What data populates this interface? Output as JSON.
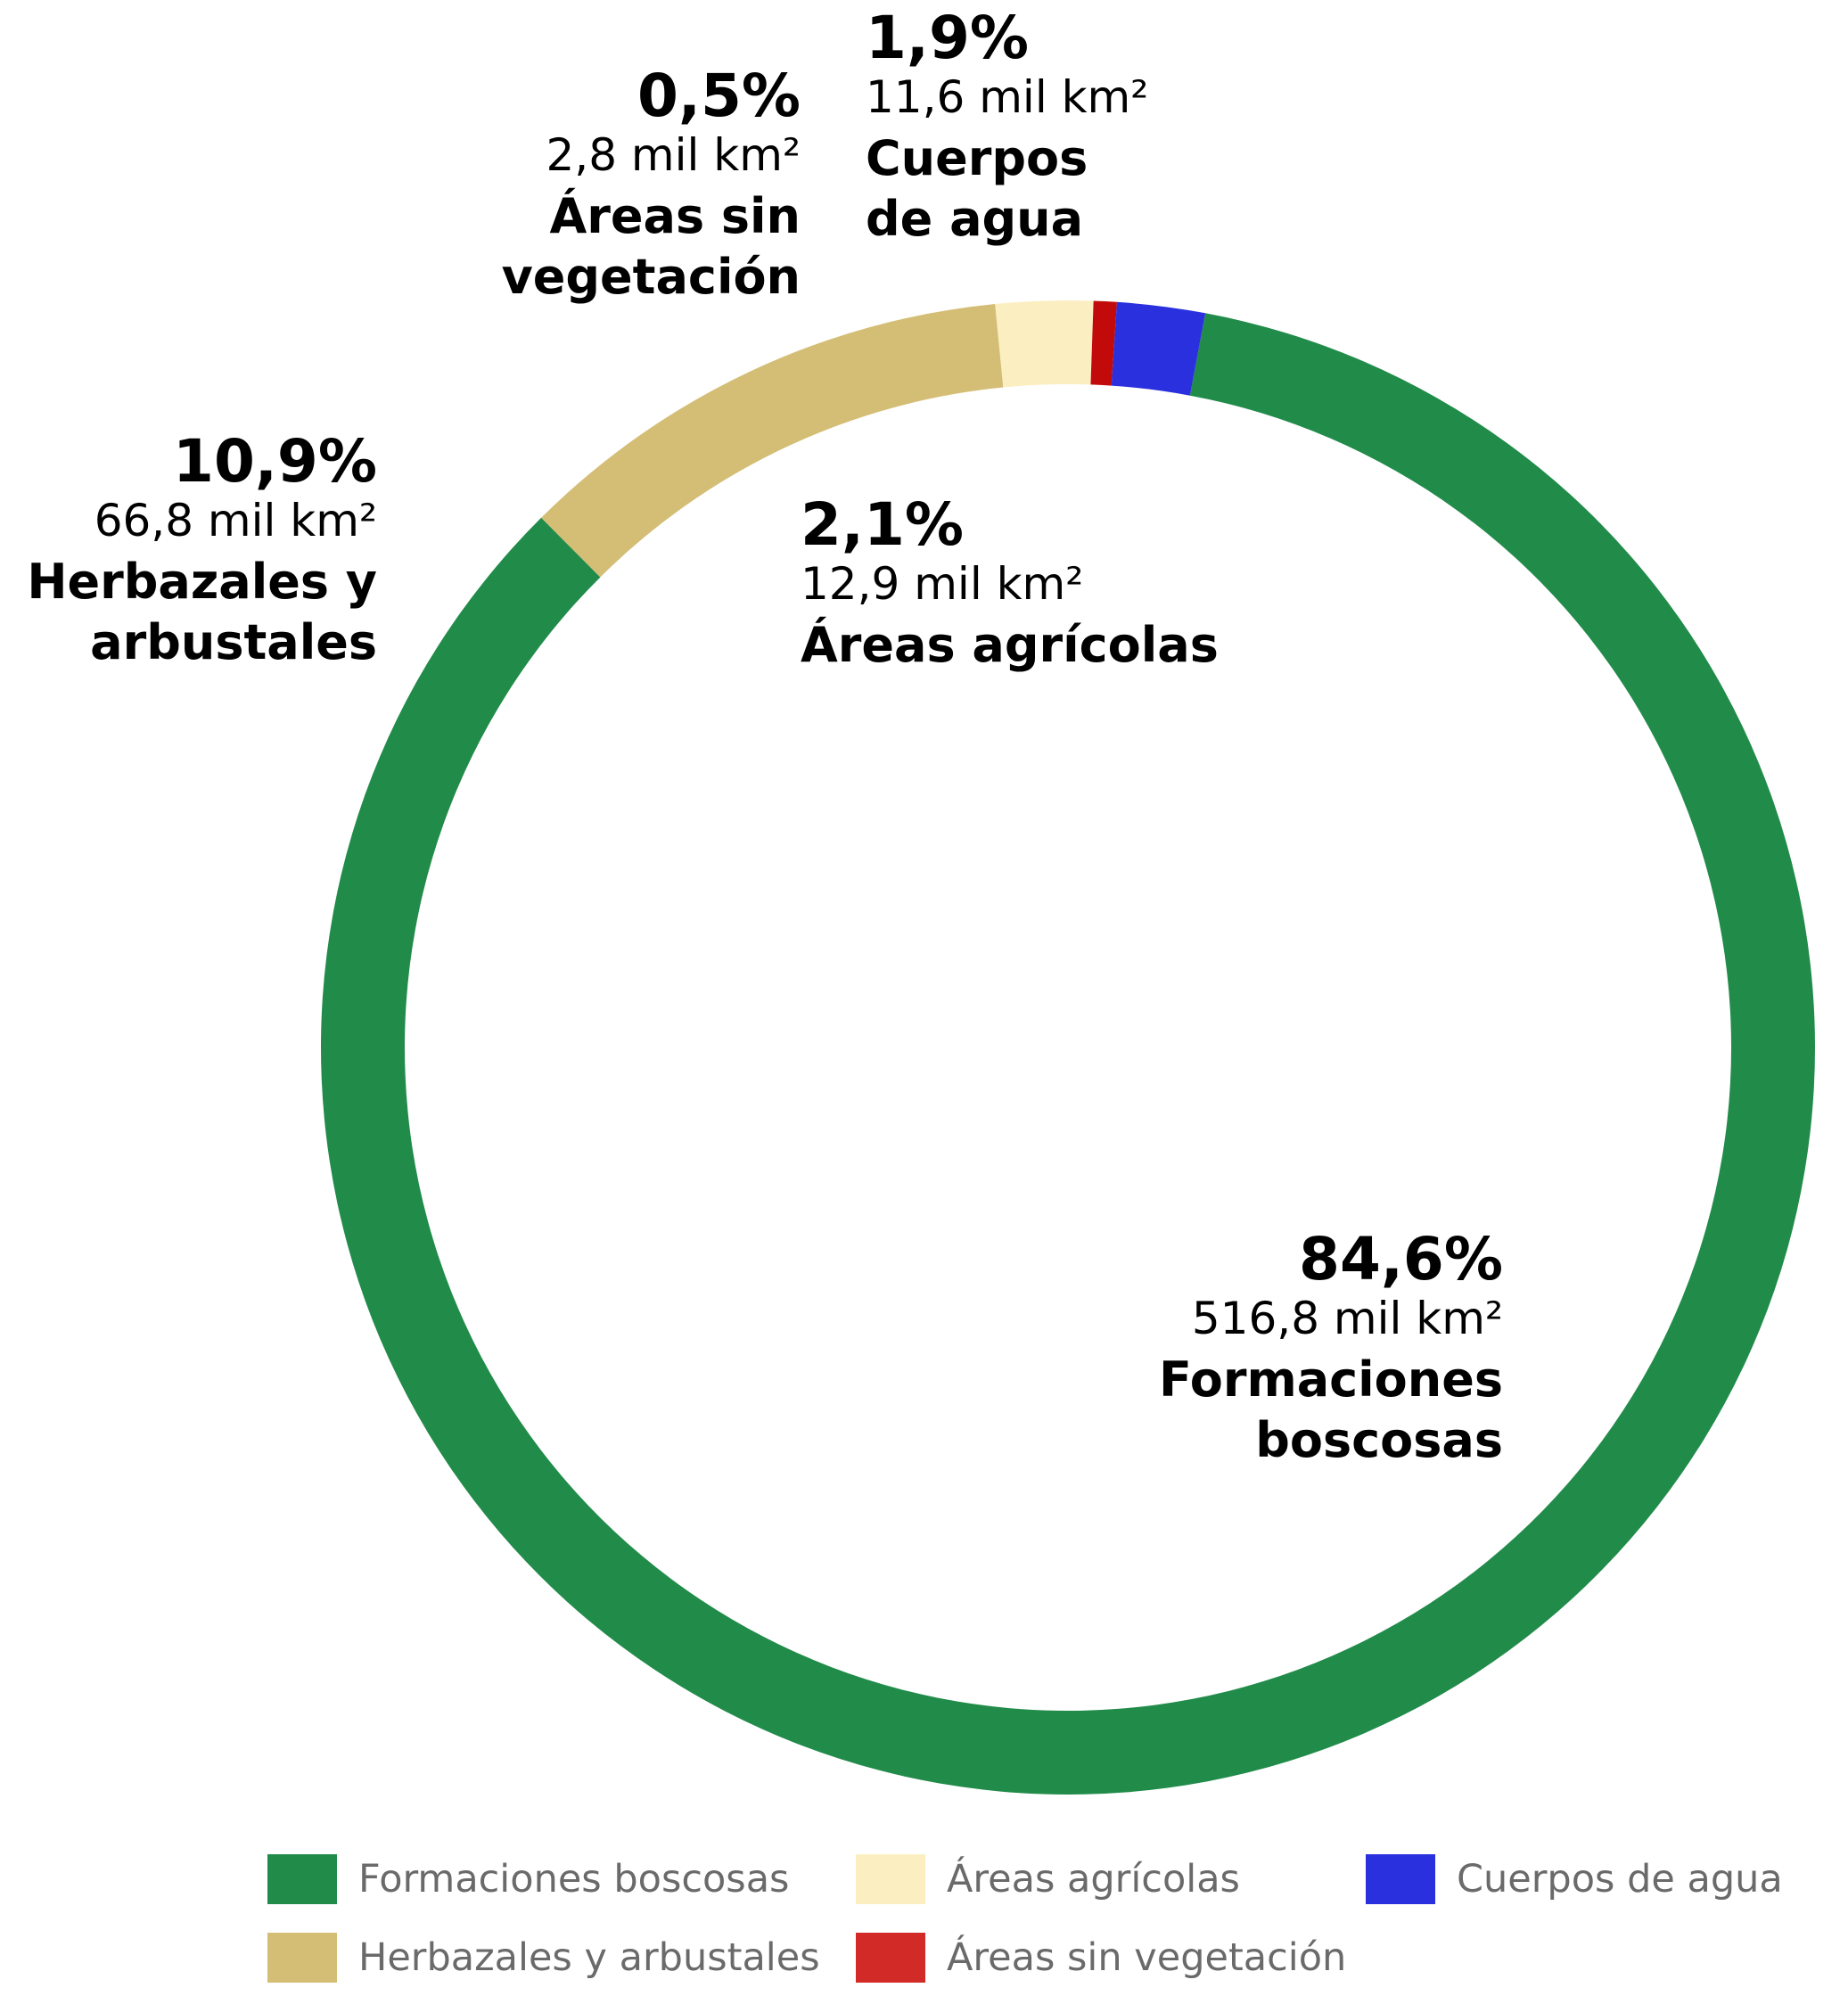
{
  "chart_data": {
    "type": "pie",
    "style": "donut",
    "slices": [
      {
        "name": "Formaciones boscosas",
        "percent": 84.6,
        "percent_label": "84,6%",
        "area_label": "516,8 mil km²",
        "label_name": "Formaciones\nboscosas",
        "color": "#218b4a"
      },
      {
        "name": "Herbazales y arbustales",
        "percent": 10.9,
        "percent_label": "10,9%",
        "area_label": "66,8 mil km²",
        "label_name": "Herbazales y\narbustales",
        "color": "#d4be76"
      },
      {
        "name": "Áreas agrícolas",
        "percent": 2.1,
        "percent_label": "2,1%",
        "area_label": "12,9 mil km²",
        "label_name": "Áreas agrícolas",
        "color": "#fbefc1"
      },
      {
        "name": "Áreas sin vegetación",
        "percent": 0.5,
        "percent_label": "0,5%",
        "area_label": "2,8 mil km²",
        "label_name": "Áreas sin\nvegetación",
        "color": "#c30a0a"
      },
      {
        "name": "Cuerpos de agua",
        "percent": 1.9,
        "percent_label": "1,9%",
        "area_label": "11,6 mil km²",
        "label_name": "Cuerpos\nde agua",
        "color": "#2a30dd"
      }
    ],
    "legend": [
      {
        "label": "Formaciones boscosas",
        "color": "#218b4a"
      },
      {
        "label": "Áreas agrícolas",
        "color": "#fbefc1"
      },
      {
        "label": "Cuerpos de agua",
        "color": "#2a30dd"
      },
      {
        "label": "Herbazales y arbustales",
        "color": "#d4be76"
      },
      {
        "label": "Áreas sin vegetación",
        "color": "#d22a26"
      }
    ],
    "legend_position": "bottom"
  }
}
